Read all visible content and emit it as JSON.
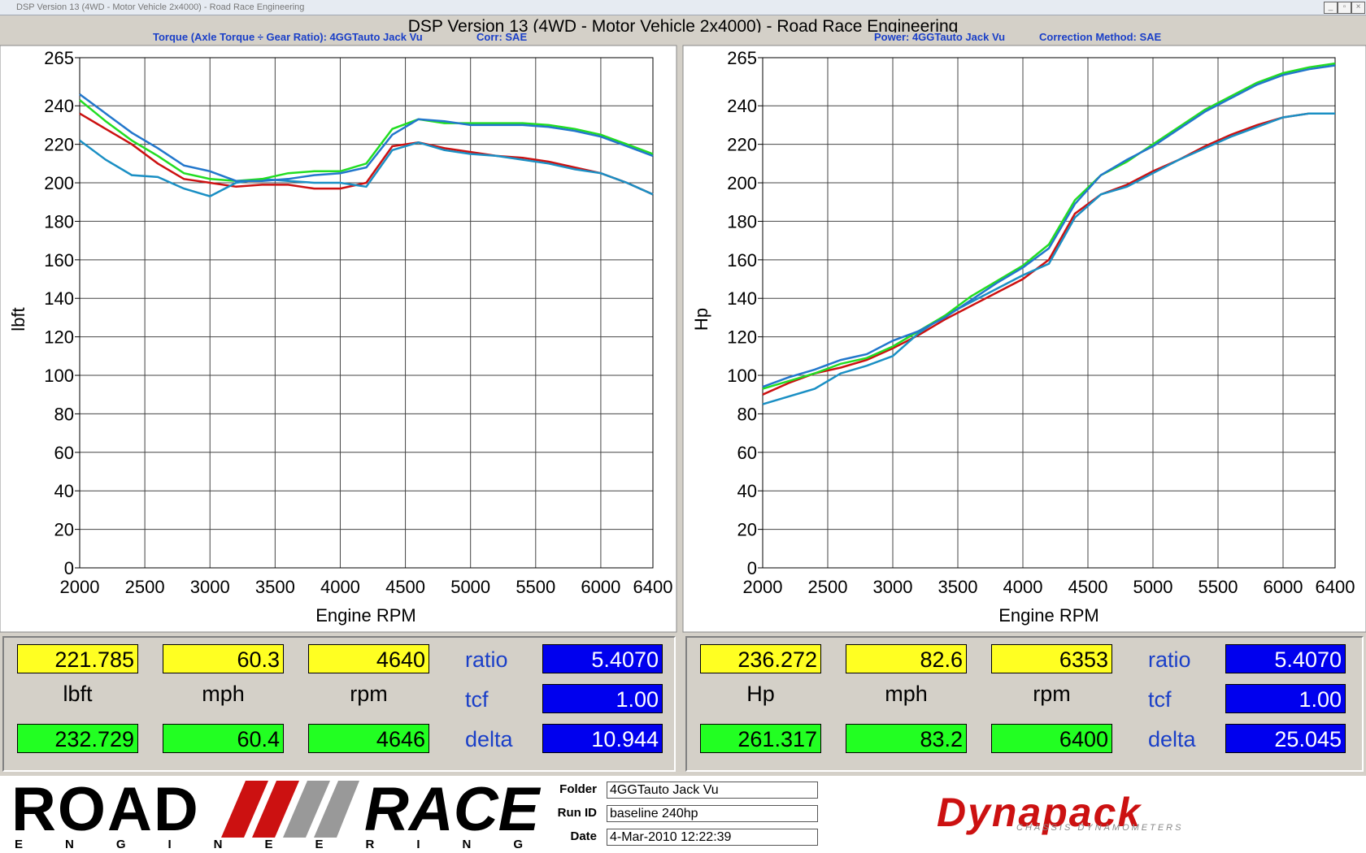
{
  "window_title": "DSP Version 13 (4WD - Motor Vehicle 2x4000) - Road Race Engineering",
  "page_title": "DSP Version 13 (4WD - Motor Vehicle 2x4000) - Road Race Engineering",
  "chart_data": [
    {
      "type": "line",
      "title": "Torque (Axle Torque ÷ Gear Ratio): 4GGTauto Jack Vu",
      "subtitle": "Corr: SAE",
      "xlabel": "Engine RPM",
      "ylabel": "lbft",
      "x": [
        2000,
        2200,
        2400,
        2600,
        2800,
        3000,
        3200,
        3400,
        3600,
        3800,
        4000,
        4200,
        4400,
        4600,
        4800,
        5000,
        5200,
        5400,
        5600,
        5800,
        6000,
        6200,
        6400
      ],
      "series": [
        {
          "color": "#cc1111",
          "values": [
            236,
            228,
            220,
            210,
            202,
            200,
            198,
            199,
            199,
            197,
            197,
            200,
            219,
            221,
            218,
            216,
            214,
            213,
            211,
            208,
            205,
            200,
            194
          ]
        },
        {
          "color": "#1a8fc4",
          "values": [
            222,
            212,
            204,
            203,
            197,
            193,
            200,
            202,
            201,
            200,
            200,
            198,
            217,
            221,
            217,
            215,
            214,
            212,
            210,
            207,
            205,
            200,
            194
          ]
        },
        {
          "color": "#22dd22",
          "values": [
            243,
            232,
            222,
            214,
            205,
            202,
            201,
            202,
            205,
            206,
            206,
            210,
            228,
            233,
            231,
            231,
            231,
            231,
            230,
            228,
            225,
            220,
            215
          ]
        },
        {
          "color": "#2277cc",
          "values": [
            246,
            236,
            226,
            218,
            209,
            206,
            201,
            201,
            202,
            204,
            205,
            208,
            225,
            233,
            232,
            230,
            230,
            230,
            229,
            227,
            224,
            219,
            214
          ]
        }
      ],
      "xlim": [
        2000,
        6400
      ],
      "xticks": [
        2000,
        2500,
        3000,
        3500,
        4000,
        4500,
        5000,
        5500,
        6000,
        6400
      ],
      "ylim": [
        0,
        265
      ],
      "yticks": [
        0,
        20,
        40,
        60,
        80,
        100,
        120,
        140,
        160,
        180,
        200,
        220,
        240,
        265
      ],
      "grid": true
    },
    {
      "type": "line",
      "title": "Power: 4GGTauto Jack Vu",
      "subtitle": "Correction Method: SAE",
      "xlabel": "Engine RPM",
      "ylabel": "Hp",
      "x": [
        2000,
        2200,
        2400,
        2600,
        2800,
        3000,
        3200,
        3400,
        3600,
        3800,
        4000,
        4200,
        4400,
        4600,
        4800,
        5000,
        5200,
        5400,
        5600,
        5800,
        6000,
        6200,
        6400
      ],
      "series": [
        {
          "color": "#cc1111",
          "values": [
            90,
            96,
            101,
            104,
            108,
            114,
            121,
            129,
            136,
            143,
            150,
            160,
            184,
            194,
            199,
            206,
            212,
            219,
            225,
            230,
            234,
            236,
            236
          ]
        },
        {
          "color": "#1a8fc4",
          "values": [
            85,
            89,
            93,
            101,
            105,
            110,
            122,
            131,
            138,
            145,
            152,
            158,
            182,
            194,
            198,
            205,
            212,
            218,
            224,
            229,
            234,
            236,
            236
          ]
        },
        {
          "color": "#22dd22",
          "values": [
            93,
            97,
            101,
            106,
            109,
            115,
            123,
            131,
            141,
            149,
            157,
            168,
            191,
            204,
            211,
            220,
            229,
            238,
            245,
            252,
            257,
            260,
            262
          ]
        },
        {
          "color": "#2277cc",
          "values": [
            94,
            99,
            103,
            108,
            111,
            118,
            123,
            130,
            139,
            148,
            156,
            166,
            189,
            204,
            212,
            219,
            228,
            237,
            244,
            251,
            256,
            259,
            261
          ]
        }
      ],
      "xlim": [
        2000,
        6400
      ],
      "xticks": [
        2000,
        2500,
        3000,
        3500,
        4000,
        4500,
        5000,
        5500,
        6000,
        6400
      ],
      "ylim": [
        0,
        265
      ],
      "yticks": [
        0,
        20,
        40,
        60,
        80,
        100,
        120,
        140,
        160,
        180,
        200,
        220,
        240,
        265
      ],
      "grid": true
    }
  ],
  "readouts": [
    {
      "cursor": [
        "221.785",
        "60.3",
        "4640"
      ],
      "units": [
        "lbft",
        "mph",
        "rpm"
      ],
      "peak": [
        "232.729",
        "60.4",
        "4646"
      ],
      "params": [
        {
          "label": "ratio",
          "value": "5.4070"
        },
        {
          "label": "tcf",
          "value": "1.00"
        },
        {
          "label": "delta",
          "value": "10.944"
        }
      ]
    },
    {
      "cursor": [
        "236.272",
        "82.6",
        "6353"
      ],
      "units": [
        "Hp",
        "mph",
        "rpm"
      ],
      "peak": [
        "261.317",
        "83.2",
        "6400"
      ],
      "params": [
        {
          "label": "ratio",
          "value": "5.4070"
        },
        {
          "label": "tcf",
          "value": "1.00"
        },
        {
          "label": "delta",
          "value": "25.045"
        }
      ]
    }
  ],
  "run_info": [
    {
      "label": "Folder",
      "value": "4GGTauto Jack Vu"
    },
    {
      "label": "Run ID",
      "value": "baseline 240hp"
    },
    {
      "label": "Date",
      "value": "4-Mar-2010 12:22:39"
    }
  ],
  "logos": {
    "road": "ROAD",
    "race": "RACE",
    "engineering": "ENGINEERING",
    "dynapack": "Dynapack",
    "dynapack_sub": "CHASSIS DYNAMOMETERS"
  }
}
